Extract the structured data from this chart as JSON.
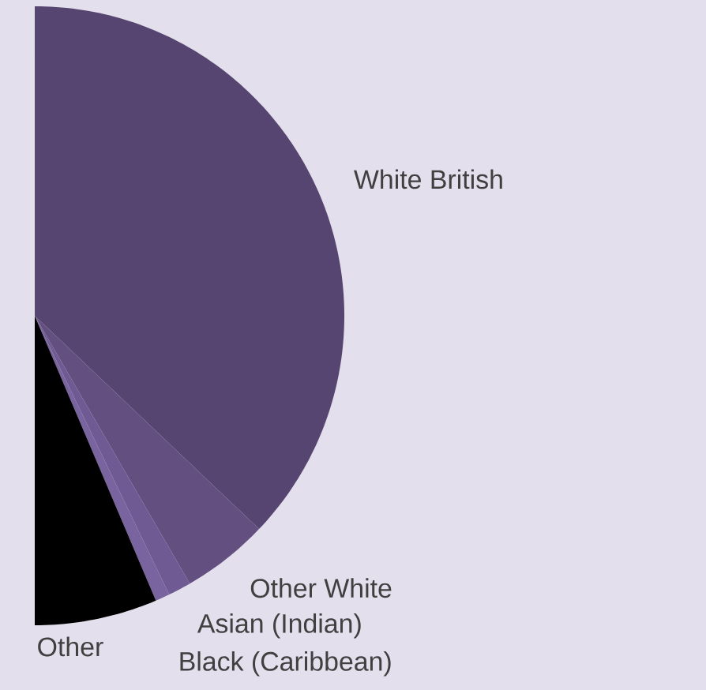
{
  "chart_data": {
    "type": "pie",
    "categories": [
      "White British",
      "Other White",
      "Asian (Indian)",
      "Black (Caribbean)",
      "Other"
    ],
    "values": [
      74.2,
      9.1,
      2.4,
      1.5,
      12.8
    ],
    "colors": [
      "#564570",
      "#634f80",
      "#6f5a93",
      "#7a64a0",
      "#000000"
    ]
  }
}
